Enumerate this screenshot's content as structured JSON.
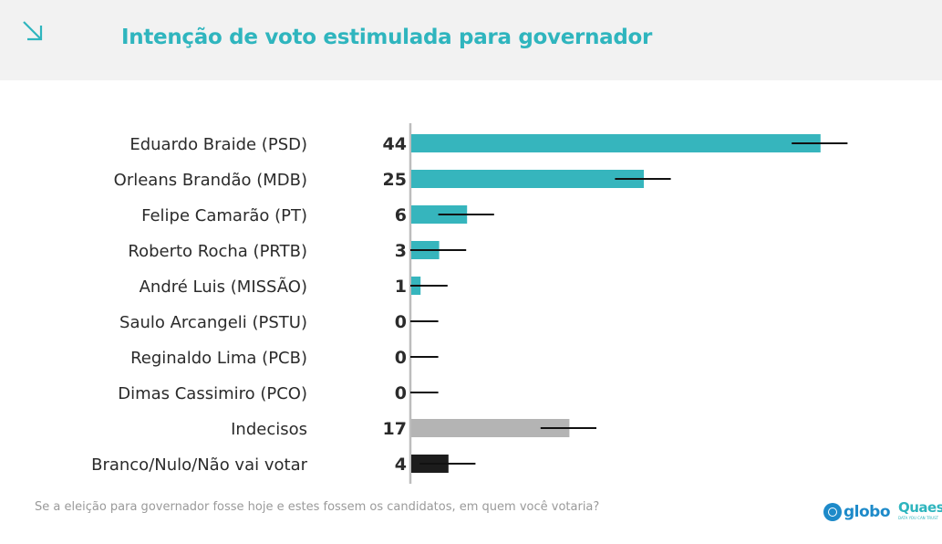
{
  "header": {
    "title": "Intenção de voto estimulada para governador",
    "arrow_icon": "arrow-down-right-icon"
  },
  "chart_data": {
    "type": "bar",
    "orientation": "horizontal",
    "title": "Intenção de voto estimulada para governador",
    "xlabel": "",
    "ylabel": "",
    "xlim": [
      0,
      60
    ],
    "grid": false,
    "error_margin": 3,
    "categories": [
      "Eduardo Braide (PSD)",
      "Orleans Brandão (MDB)",
      "Felipe Camarão (PT)",
      "Roberto Rocha (PRTB)",
      "André Luis (MISSÃO)",
      "Saulo Arcangeli (PSTU)",
      "Reginaldo Lima (PCB)",
      "Dimas Cassimiro (PCO)",
      "Indecisos",
      "Branco/Nulo/Não vai votar"
    ],
    "values": [
      44,
      25,
      6,
      3,
      1,
      0,
      0,
      0,
      17,
      4
    ],
    "value_labels": [
      "44",
      "25",
      "6",
      "3",
      "1",
      "0",
      "0",
      "0",
      "17",
      "4"
    ],
    "bar_colors": [
      "#36b5bd",
      "#36b5bd",
      "#36b5bd",
      "#36b5bd",
      "#36b5bd",
      "#36b5bd",
      "#36b5bd",
      "#36b5bd",
      "#b4b4b4",
      "#1c1c1c"
    ]
  },
  "footnote": "Se a eleição para governador fosse hoje e estes fossem os candidatos, em quem você votaria?",
  "logos": {
    "globo_text": "globo",
    "quaest_text": "Quaest",
    "quaest_tagline": "DATA YOU CAN TRUST"
  }
}
